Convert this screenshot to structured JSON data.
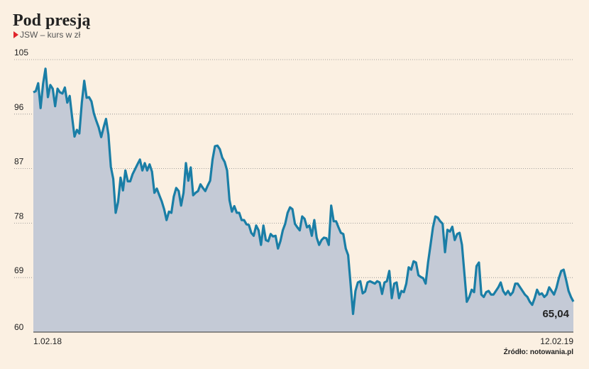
{
  "chart_data": {
    "type": "line",
    "title": "Pod presją",
    "subtitle": "JSW – kurs w zł",
    "source": "Źródło: notowania.pl",
    "categories": [
      "1.02.18",
      null,
      null,
      null,
      null,
      null,
      null,
      null,
      null,
      null,
      null,
      null,
      null,
      null,
      null,
      null,
      null,
      null,
      null,
      null,
      null,
      null,
      null,
      null,
      null,
      null,
      null,
      null,
      null,
      null,
      null,
      null,
      null,
      null,
      null,
      null,
      null,
      null,
      null,
      null,
      null,
      null,
      null,
      null,
      null,
      null,
      null,
      null,
      null,
      null,
      null,
      null,
      null,
      null,
      null,
      null,
      null,
      null,
      null,
      null,
      null,
      null,
      null,
      null,
      null,
      null,
      null,
      null,
      null,
      null,
      null,
      null,
      null,
      null,
      null,
      null,
      null,
      null,
      null,
      null,
      null,
      null,
      null,
      null,
      null,
      null,
      null,
      null,
      null,
      null,
      null,
      null,
      null,
      null,
      null,
      null,
      null,
      null,
      null,
      null,
      null,
      null,
      null,
      null,
      null,
      null,
      null,
      null,
      null,
      null,
      null,
      null,
      null,
      null,
      null,
      null,
      null,
      null,
      null,
      null,
      null,
      null,
      null,
      null,
      null,
      null,
      null,
      null,
      null,
      null,
      null,
      null,
      null,
      null,
      null,
      null,
      null,
      null,
      null,
      null,
      null,
      null,
      null,
      null,
      null,
      null,
      null,
      null,
      null,
      null,
      null,
      null,
      null,
      null,
      null,
      null,
      null,
      null,
      null,
      null,
      null,
      null,
      null,
      null,
      null,
      null,
      null,
      null,
      null,
      null,
      null,
      null,
      null,
      null,
      null,
      null,
      null,
      null,
      null,
      null,
      null,
      null,
      null,
      null,
      null,
      null,
      null,
      null,
      null,
      null,
      null,
      null,
      null,
      null,
      null,
      null,
      null,
      null,
      null,
      null,
      null,
      null,
      null,
      null,
      null,
      null,
      null,
      null,
      null,
      null,
      null,
      null,
      null,
      null,
      null,
      null,
      null,
      null,
      null,
      null,
      null,
      null,
      null,
      "12.02.19"
    ],
    "values": [
      99.6,
      99.8,
      101.1,
      97.0,
      101,
      103.5,
      98.8,
      100.8,
      100.2,
      97.3,
      100.2,
      99.6,
      99.4,
      100.4,
      97.9,
      99.0,
      95.5,
      92.3,
      93.4,
      92.8,
      97.9,
      101.5,
      98.7,
      98.8,
      98.1,
      96.1,
      94.9,
      93.8,
      92.2,
      93.8,
      95.2,
      92.6,
      87.3,
      85.3,
      79.7,
      81.5,
      85.5,
      83.4,
      86.7,
      84.9,
      84.9,
      86.1,
      86.9,
      87.7,
      88.5,
      86.7,
      87.9,
      86.7,
      87.7,
      86.5,
      83.0,
      83.7,
      82.6,
      81.6,
      80.3,
      78.5,
      79.9,
      79.7,
      82.4,
      83.8,
      83.3,
      80.9,
      83.0,
      87.9,
      85.0,
      87.2,
      82.6,
      83.0,
      83.3,
      84.4,
      83.8,
      83.3,
      84.2,
      85.0,
      88.5,
      90.7,
      90.8,
      90.2,
      88.8,
      88.1,
      86.7,
      81.8,
      79.9,
      80.8,
      79.7,
      79.7,
      78.5,
      78.5,
      77.8,
      77.7,
      76.4,
      75.9,
      77.6,
      76.8,
      74.4,
      77.6,
      75.2,
      75.0,
      76.2,
      75.8,
      75.9,
      73.8,
      75.0,
      76.8,
      77.9,
      79.7,
      80.6,
      80.3,
      77.9,
      77.3,
      76.8,
      79.1,
      78.7,
      77.3,
      77.6,
      75.9,
      78.5,
      75.6,
      74.4,
      75.2,
      75.6,
      75.5,
      74.4,
      80.9,
      78.3,
      78.3,
      77.3,
      76.4,
      76.2,
      73.8,
      72.7,
      68.0,
      63.0,
      66.8,
      68.2,
      68.4,
      66.4,
      66.7,
      68.2,
      68.4,
      68.2,
      68.0,
      68.4,
      68.2,
      66.3,
      68.2,
      68.4,
      70.1,
      65.6,
      68.0,
      68.2,
      65.6,
      66.8,
      66.6,
      68.0,
      70.7,
      70.3,
      71.7,
      71.5,
      69.4,
      69.1,
      68.9,
      68.0,
      71.5,
      74.4,
      77.3,
      79.1,
      78.9,
      78.3,
      77.9,
      73.2,
      76.9,
      76.6,
      77.4,
      75.2,
      76.2,
      76.4,
      74.4,
      69.7,
      65.0,
      65.8,
      67.0,
      66.6,
      70.9,
      71.5,
      66.2,
      65.8,
      66.6,
      66.8,
      66.2,
      66.2,
      66.8,
      67.4,
      68.2,
      66.8,
      66.2,
      66.8,
      66.1,
      66.6,
      68.0,
      68.0,
      67.4,
      66.8,
      66.2,
      65.8,
      65.0,
      64.5,
      65.6,
      67.0,
      66.2,
      66.4,
      65.8,
      66.2,
      67.4,
      66.8,
      66.2,
      67.3,
      68.9,
      70.1,
      70.3,
      68.6,
      66.8,
      65.8,
      65.04
    ],
    "value_labels": [
      null,
      null,
      null,
      null,
      null,
      null,
      null,
      null,
      null,
      null,
      null,
      null,
      null,
      null,
      null,
      null,
      null,
      null,
      null,
      null,
      null,
      null,
      null,
      null,
      null,
      null,
      null,
      null,
      null,
      null,
      null,
      null,
      null,
      null,
      null,
      null,
      null,
      null,
      null,
      null,
      null,
      null,
      null,
      null,
      null,
      null,
      null,
      null,
      null,
      null,
      null,
      null,
      null,
      null,
      null,
      null,
      null,
      null,
      null,
      null,
      null,
      null,
      null,
      null,
      null,
      null,
      null,
      null,
      null,
      null,
      null,
      null,
      null,
      null,
      null,
      null,
      null,
      null,
      null,
      null,
      null,
      null,
      null,
      null,
      null,
      null,
      null,
      null,
      null,
      null,
      null,
      null,
      null,
      null,
      null,
      null,
      null,
      null,
      null,
      null,
      null,
      null,
      null,
      null,
      null,
      null,
      null,
      null,
      null,
      null,
      null,
      null,
      null,
      null,
      null,
      null,
      null,
      null,
      null,
      null,
      null,
      null,
      null,
      null,
      null,
      null,
      null,
      null,
      null,
      null,
      null,
      null,
      null,
      null,
      null,
      null,
      null,
      null,
      null,
      null,
      null,
      null,
      null,
      null,
      null,
      null,
      null,
      null,
      null,
      null,
      null,
      null,
      null,
      null,
      null,
      null,
      null,
      null,
      null,
      null,
      null,
      null,
      null,
      null,
      null,
      null,
      null,
      null,
      null,
      null,
      null,
      null,
      null,
      null,
      null,
      null,
      null,
      null,
      null,
      null,
      null,
      null,
      null,
      null,
      null,
      null,
      null,
      null,
      null,
      null,
      null,
      null,
      null,
      null,
      null,
      null,
      null,
      null,
      null,
      null,
      null,
      null,
      null,
      null,
      null,
      null,
      null,
      null,
      null,
      null,
      null,
      null,
      null,
      null,
      null,
      null,
      null,
      null,
      null,
      null,
      null,
      null,
      null,
      "65,04"
    ],
    "color": "#1a7ea6",
    "fill": "#c4cad6",
    "ylim": [
      60,
      105
    ],
    "yticks": [
      60,
      69,
      78,
      87,
      96,
      105
    ],
    "grid": true
  }
}
